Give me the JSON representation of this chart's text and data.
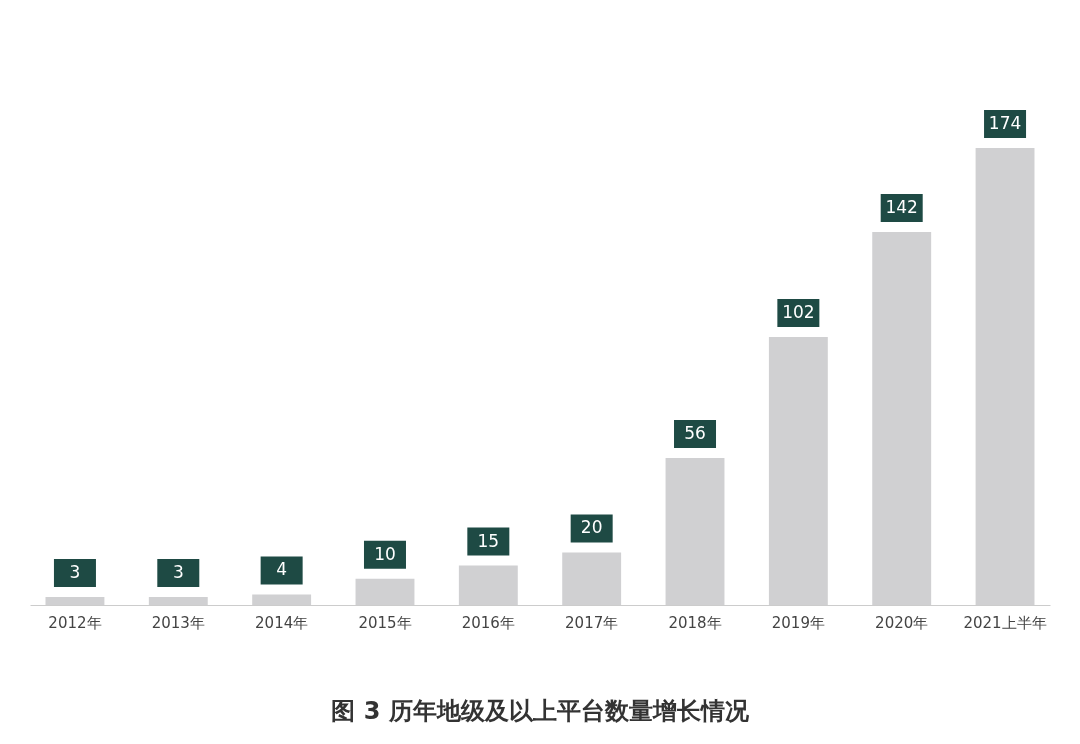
{
  "chart_data": {
    "type": "bar",
    "title": "图 3 历年地级及以上平台数量增长情况",
    "categories": [
      "2012年",
      "2013年",
      "2014年",
      "2015年",
      "2016年",
      "2017年",
      "2018年",
      "2019年",
      "2020年",
      "2021上半年"
    ],
    "values": [
      3,
      3,
      4,
      10,
      15,
      20,
      56,
      102,
      142,
      174
    ],
    "color": "#d0d0d2",
    "data_labels": true,
    "grid": false
  }
}
